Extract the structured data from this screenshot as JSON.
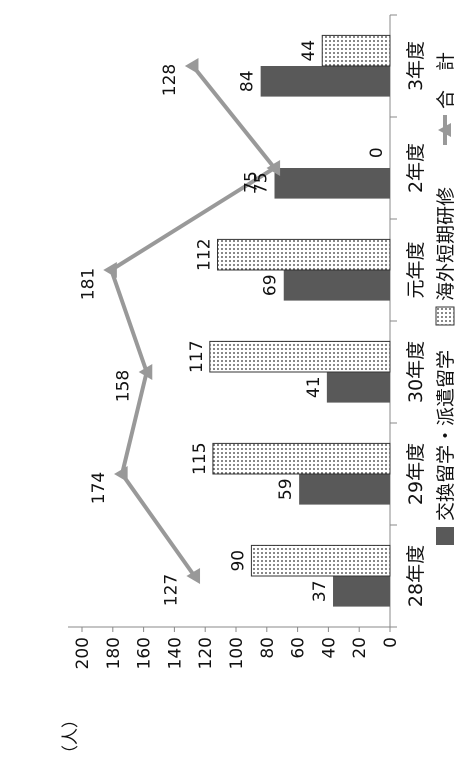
{
  "chart_data": {
    "type": "bar",
    "unit_label": "（人）",
    "categories": [
      "28年度",
      "29年度",
      "30年度",
      "元年度",
      "2年度",
      "3年度"
    ],
    "ylim": [
      0,
      200
    ],
    "yticks": [
      0,
      20,
      40,
      60,
      80,
      100,
      120,
      140,
      160,
      180,
      200
    ],
    "series": [
      {
        "name": "交換留学・派遣留学",
        "kind": "bar",
        "color": "#595959",
        "pattern": "solid",
        "values": [
          37,
          59,
          41,
          69,
          75,
          84
        ]
      },
      {
        "name": "海外短期研修",
        "kind": "bar",
        "color": "#ffffff",
        "pattern": "dots",
        "values": [
          90,
          115,
          117,
          112,
          0,
          44
        ]
      },
      {
        "name": "合　計",
        "kind": "line",
        "color": "#999999",
        "marker": "triangle",
        "values": [
          127,
          174,
          158,
          181,
          75,
          128
        ]
      }
    ],
    "legend_position": "bottom",
    "grid": false
  }
}
